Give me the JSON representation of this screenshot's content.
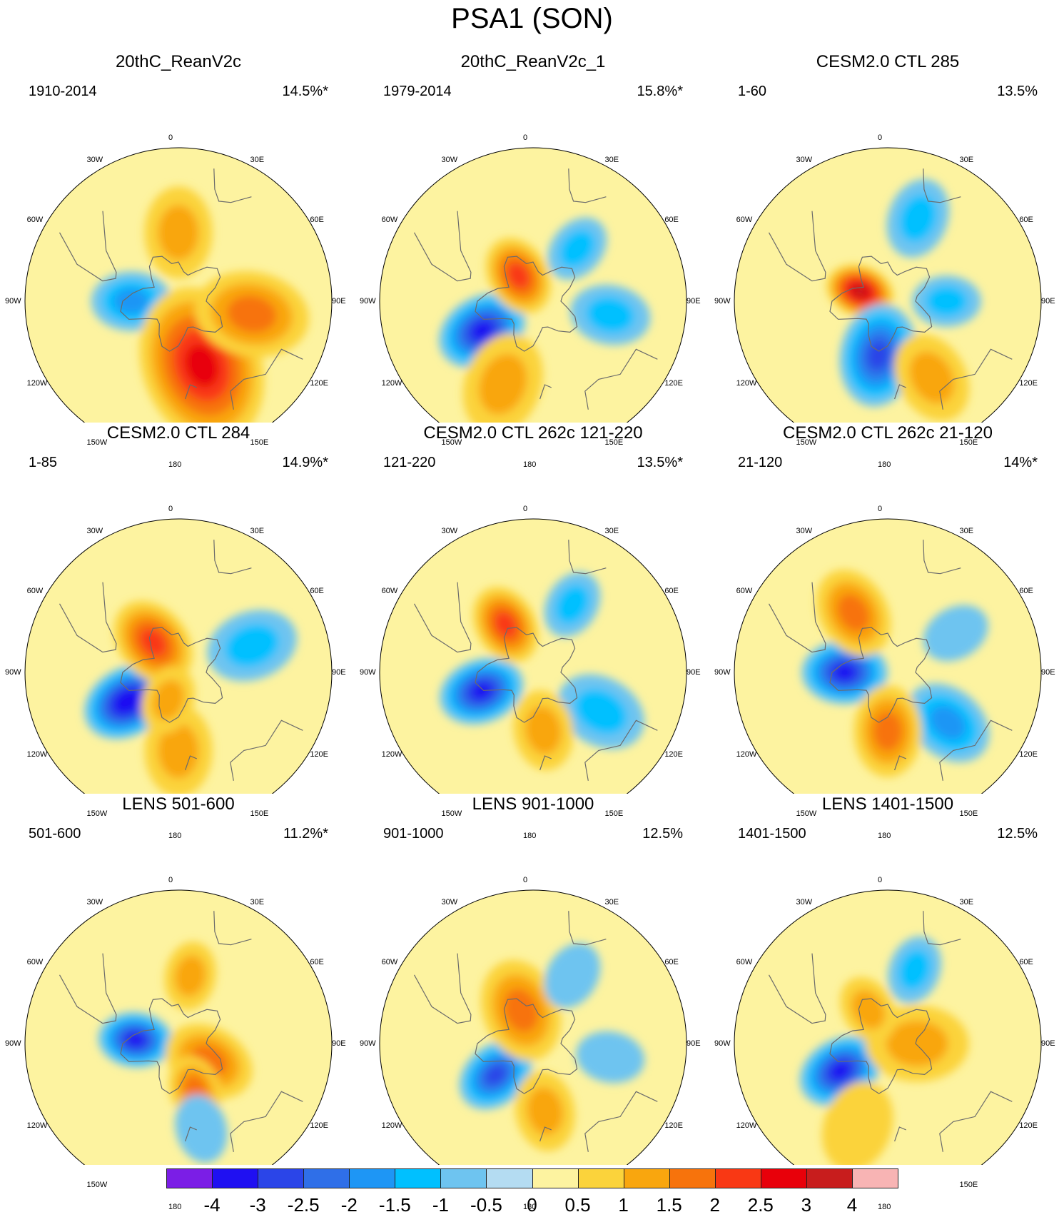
{
  "figure": {
    "title": "PSA1 (SON)"
  },
  "chart_data": {
    "type": "heatmap",
    "projection": "south-polar-stereographic",
    "longitude_labels": [
      "0",
      "30E",
      "60E",
      "90E",
      "120E",
      "150E",
      "180",
      "150W",
      "120W",
      "90W",
      "60W",
      "30W"
    ],
    "colorbar": {
      "ticks": [
        "-4",
        "-3",
        "-2.5",
        "-2",
        "-1.5",
        "-1",
        "-0.5",
        "0",
        "0.5",
        "1",
        "1.5",
        "2",
        "2.5",
        "3",
        "4"
      ],
      "colors": [
        "#7b1ee6",
        "#1f10f2",
        "#2b45e8",
        "#2f6fe8",
        "#1e96f5",
        "#00c0ff",
        "#6ec4f0",
        "#b4dcf2",
        "#fdf3a0",
        "#fbd33b",
        "#f9a60e",
        "#f7730c",
        "#f93814",
        "#e8000a",
        "#c81d1d",
        "#f8b4b4"
      ]
    },
    "panels": [
      {
        "title": "20thC_ReanV2c",
        "period": "1910-2014",
        "variance": "14.5%*",
        "blobs": [
          {
            "lon": 270,
            "lat": -66,
            "value": -1.8,
            "size": 0.7
          },
          {
            "lon": 160,
            "lat": -55,
            "value": 2.6,
            "size": 1.4
          },
          {
            "lon": 100,
            "lat": -52,
            "value": 1.6,
            "size": 1.0
          },
          {
            "lon": 0,
            "lat": -55,
            "value": 1.2,
            "size": 0.8
          },
          {
            "lon": 300,
            "lat": -40,
            "value": -0.4,
            "size": 0.6
          }
        ]
      },
      {
        "title": "20thC_ReanV2c_1",
        "period": "1979-2014",
        "variance": "15.8%*",
        "blobs": [
          {
            "lon": 240,
            "lat": -60,
            "value": -3.2,
            "size": 0.8
          },
          {
            "lon": 330,
            "lat": -75,
            "value": 2.0,
            "size": 0.7
          },
          {
            "lon": 40,
            "lat": -55,
            "value": -1.2,
            "size": 0.6
          },
          {
            "lon": 100,
            "lat": -50,
            "value": -1.0,
            "size": 0.7
          },
          {
            "lon": 200,
            "lat": -45,
            "value": 1.2,
            "size": 0.9
          }
        ]
      },
      {
        "title": "CESM2.0 CTL 285",
        "period": "1-60",
        "variance": "13.5%",
        "blobs": [
          {
            "lon": 290,
            "lat": -75,
            "value": 3.0,
            "size": 0.6
          },
          {
            "lon": 190,
            "lat": -62,
            "value": -2.6,
            "size": 0.9
          },
          {
            "lon": 20,
            "lat": -45,
            "value": -1.4,
            "size": 0.7
          },
          {
            "lon": 90,
            "lat": -60,
            "value": -1.2,
            "size": 0.6
          },
          {
            "lon": 150,
            "lat": -45,
            "value": 1.1,
            "size": 0.8
          }
        ]
      },
      {
        "title": "CESM2.0 CTL 284",
        "period": "1-85",
        "variance": "14.9%*",
        "blobs": [
          {
            "lon": 240,
            "lat": -60,
            "value": -3.7,
            "size": 0.8
          },
          {
            "lon": 320,
            "lat": -70,
            "value": 2.2,
            "size": 0.8
          },
          {
            "lon": 70,
            "lat": -50,
            "value": -1.1,
            "size": 0.8
          },
          {
            "lon": 180,
            "lat": -50,
            "value": 1.2,
            "size": 0.8
          },
          {
            "lon": 200,
            "lat": -75,
            "value": 1.4,
            "size": 0.6
          }
        ]
      },
      {
        "title": "CESM2.0 CTL 262c 121-220",
        "period": "121-220",
        "variance": "13.5%*",
        "blobs": [
          {
            "lon": 250,
            "lat": -62,
            "value": -3.3,
            "size": 0.75
          },
          {
            "lon": 330,
            "lat": -62,
            "value": 2.3,
            "size": 0.7
          },
          {
            "lon": 30,
            "lat": -50,
            "value": -1.4,
            "size": 0.6
          },
          {
            "lon": 120,
            "lat": -50,
            "value": -1.2,
            "size": 0.8
          },
          {
            "lon": 170,
            "lat": -60,
            "value": 1.3,
            "size": 0.7
          }
        ]
      },
      {
        "title": "CESM2.0 CTL 262c 21-120",
        "period": "21-120",
        "variance": "14%*",
        "blobs": [
          {
            "lon": 270,
            "lat": -68,
            "value": -3.4,
            "size": 0.75
          },
          {
            "lon": 330,
            "lat": -55,
            "value": 1.7,
            "size": 0.8
          },
          {
            "lon": 130,
            "lat": -50,
            "value": -1.6,
            "size": 0.8
          },
          {
            "lon": 180,
            "lat": -60,
            "value": 1.7,
            "size": 0.8
          },
          {
            "lon": 60,
            "lat": -50,
            "value": -0.7,
            "size": 0.6
          }
        ]
      },
      {
        "title": "LENS 501-600",
        "period": "501-600",
        "variance": "11.2%*",
        "blobs": [
          {
            "lon": 275,
            "lat": -68,
            "value": -3.0,
            "size": 0.65
          },
          {
            "lon": 10,
            "lat": -55,
            "value": 1.1,
            "size": 0.6
          },
          {
            "lon": 120,
            "lat": -72,
            "value": 1.6,
            "size": 0.8
          },
          {
            "lon": 160,
            "lat": -65,
            "value": 1.5,
            "size": 0.6
          },
          {
            "lon": 165,
            "lat": -45,
            "value": -0.8,
            "size": 0.6
          }
        ]
      },
      {
        "title": "LENS 901-1000",
        "period": "901-1000",
        "variance": "12.5%",
        "blobs": [
          {
            "lon": 230,
            "lat": -65,
            "value": -2.8,
            "size": 0.7
          },
          {
            "lon": 340,
            "lat": -72,
            "value": 1.6,
            "size": 0.9
          },
          {
            "lon": 30,
            "lat": -50,
            "value": -0.8,
            "size": 0.6
          },
          {
            "lon": 100,
            "lat": -50,
            "value": -0.7,
            "size": 0.6
          },
          {
            "lon": 170,
            "lat": -55,
            "value": 1.2,
            "size": 0.7
          }
        ]
      },
      {
        "title": "LENS 1401-1500",
        "period": "1401-1500",
        "variance": "12.5%",
        "blobs": [
          {
            "lon": 240,
            "lat": -62,
            "value": -3.0,
            "size": 0.75
          },
          {
            "lon": 20,
            "lat": -50,
            "value": -1.3,
            "size": 0.6
          },
          {
            "lon": 90,
            "lat": -75,
            "value": 1.4,
            "size": 0.9
          },
          {
            "lon": 330,
            "lat": -70,
            "value": 1.3,
            "size": 0.6
          },
          {
            "lon": 200,
            "lat": -45,
            "value": 0.8,
            "size": 0.8
          }
        ]
      }
    ]
  }
}
